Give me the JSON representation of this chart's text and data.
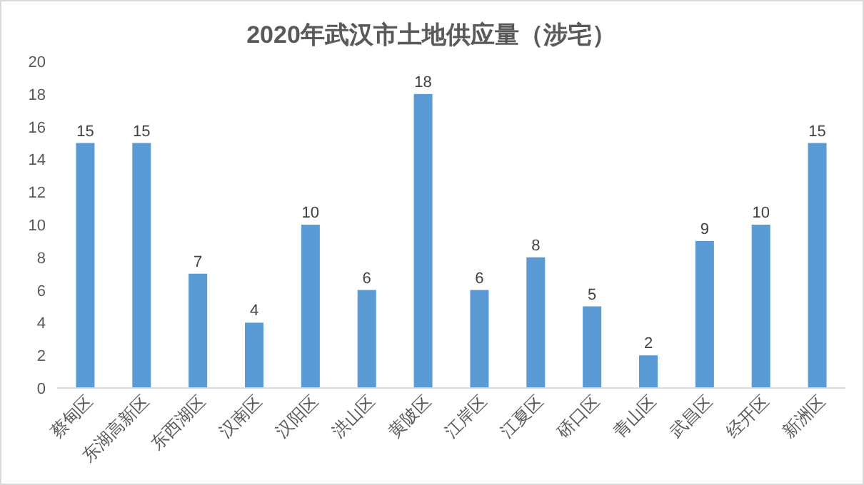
{
  "chart_data": {
    "type": "bar",
    "title": "2020年武汉市土地供应量（涉宅）",
    "categories": [
      "蔡甸区",
      "东湖高新区",
      "东西湖区",
      "汉南区",
      "汉阳区",
      "洪山区",
      "黄陂区",
      "江岸区",
      "江夏区",
      "硚口区",
      "青山区",
      "武昌区",
      "经开区",
      "新洲区"
    ],
    "values": [
      15,
      15,
      7,
      4,
      10,
      6,
      18,
      6,
      8,
      5,
      2,
      9,
      10,
      15
    ],
    "color": "#5b9bd5",
    "ylim": [
      0,
      20
    ],
    "yticks": [
      0,
      2,
      4,
      6,
      8,
      10,
      12,
      14,
      16,
      18,
      20
    ],
    "data_labels": true
  }
}
